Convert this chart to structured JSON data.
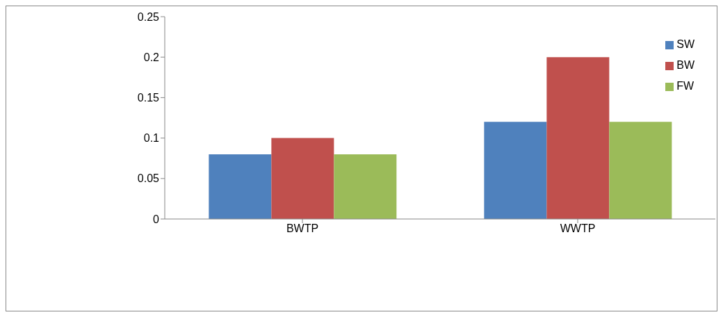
{
  "chart_data": {
    "type": "bar",
    "categories": [
      "BWTP",
      "WWTP"
    ],
    "series": [
      {
        "name": "SW",
        "color": "#4f81bd",
        "values": [
          0.08,
          0.12
        ]
      },
      {
        "name": "BW",
        "color": "#c0504d",
        "values": [
          0.1,
          0.2
        ]
      },
      {
        "name": "FW",
        "color": "#9bbb59",
        "values": [
          0.08,
          0.12
        ]
      }
    ],
    "ylim": [
      0,
      0.25
    ],
    "yticks": [
      0,
      0.05,
      0.1,
      0.15,
      0.2,
      0.25
    ],
    "grid": false,
    "legend": "top right"
  }
}
